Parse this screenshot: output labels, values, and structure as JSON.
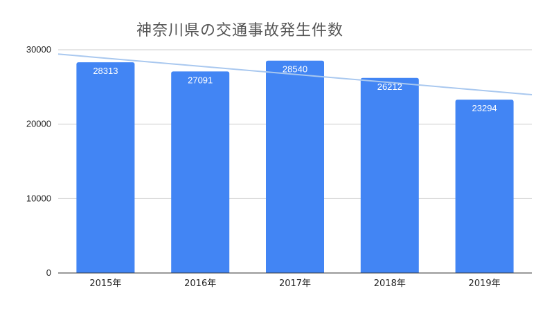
{
  "chart_data": {
    "type": "bar",
    "title": "神奈川県の交通事故発生件数",
    "xlabel": "",
    "ylabel": "",
    "categories": [
      "2015年",
      "2016年",
      "2017年",
      "2018年",
      "2019年"
    ],
    "values": [
      28313,
      27091,
      28540,
      26212,
      23294
    ],
    "data_labels": [
      "28313",
      "27091",
      "28540",
      "26212",
      "23294"
    ],
    "ylim": [
      0,
      30000
    ],
    "yticks": [
      0,
      10000,
      20000,
      30000
    ],
    "ytick_labels": [
      "0",
      "10000",
      "20000",
      "30000"
    ],
    "grid": true,
    "legend": "none",
    "trendline": {
      "type": "linear",
      "color": "#a9c8ef"
    },
    "colors": {
      "bar": "#4285f4",
      "grid": "#cccccc",
      "axis": "#333333"
    }
  }
}
